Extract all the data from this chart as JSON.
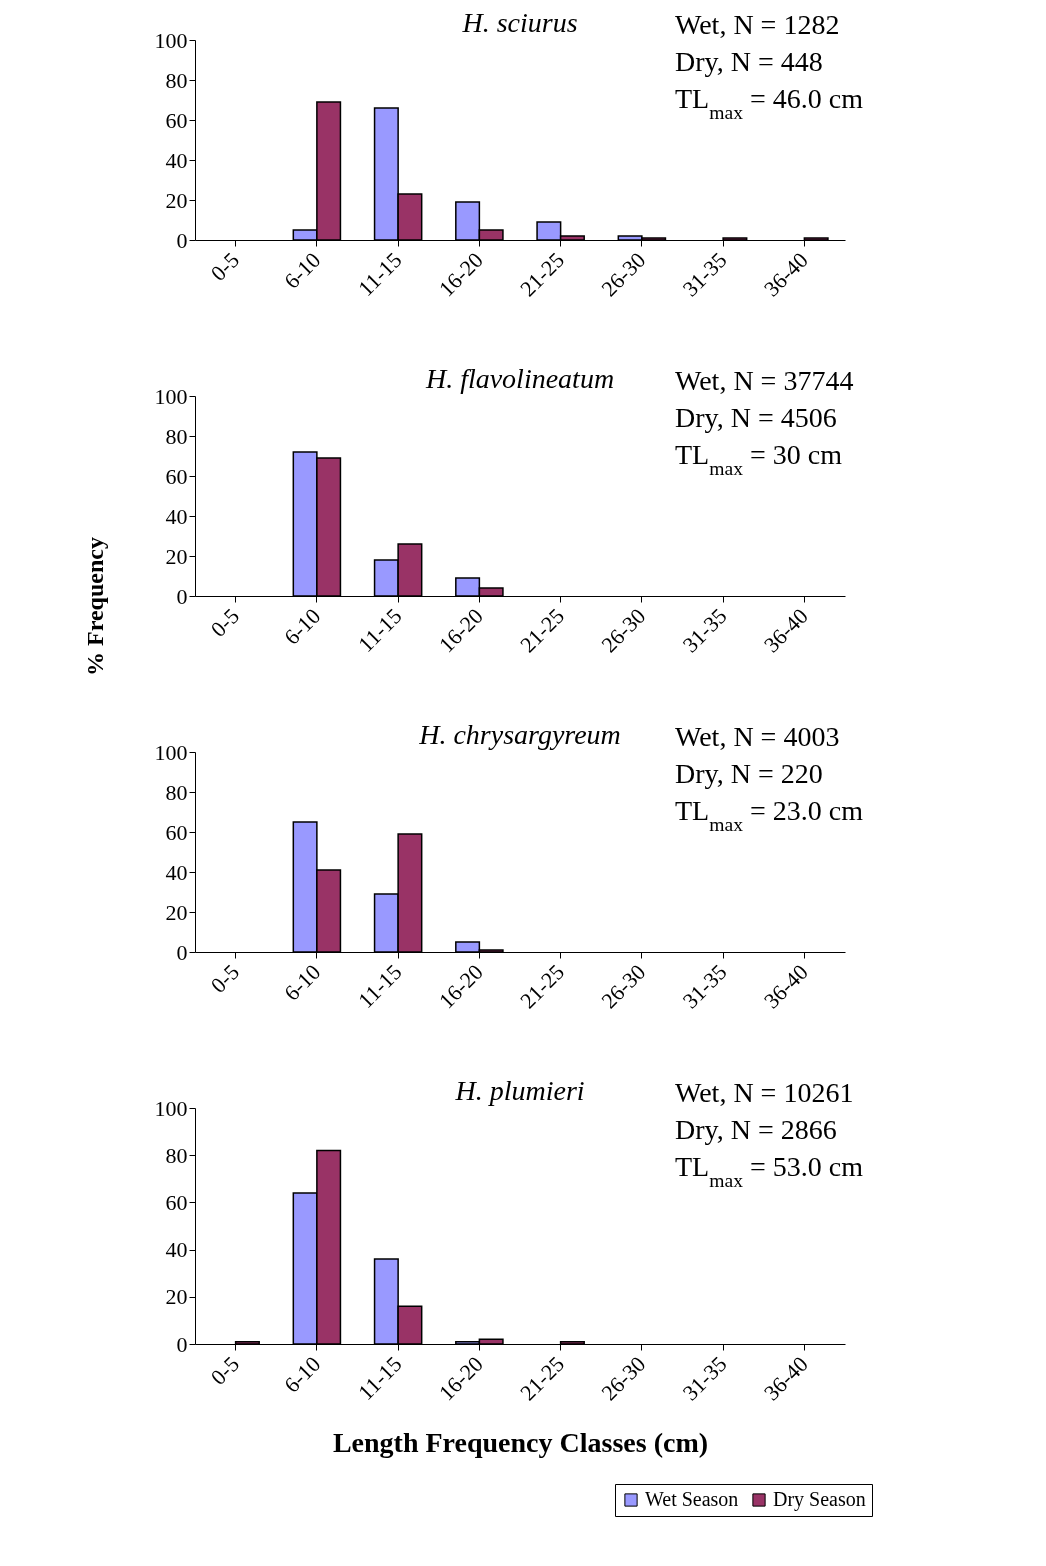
{
  "chart_data": [
    {
      "type": "bar",
      "title": "H. sciurus",
      "categories": [
        "0-5",
        "6-10",
        "11-15",
        "16-20",
        "21-25",
        "26-30",
        "31-35",
        "36-40"
      ],
      "ylim": [
        0,
        100
      ],
      "yticks": [
        0,
        20,
        40,
        60,
        80,
        100
      ],
      "annotations": [
        "Wet, N = 1282",
        "Dry, N = 448",
        "TL$_{max}$ = 46.0 cm"
      ],
      "series": [
        {
          "color": "#9999ff",
          "values": [
            null,
            5,
            66,
            19,
            9,
            2,
            null,
            null
          ]
        },
        {
          "color": "#993366",
          "values": [
            null,
            69,
            23,
            5,
            2,
            1,
            1,
            1
          ]
        }
      ]
    },
    {
      "type": "bar",
      "title": "H. flavolineatum",
      "ylabel": "% Frequency",
      "categories": [
        "0-5",
        "6-10",
        "11-15",
        "16-20",
        "21-25",
        "26-30",
        "31-35",
        "36-40"
      ],
      "ylim": [
        0,
        100
      ],
      "yticks": [
        0,
        20,
        40,
        60,
        80,
        100
      ],
      "annotations": [
        "Wet, N = 37744",
        "Dry, N = 4506",
        "TL$_{max}$ = 30 cm"
      ],
      "series": [
        {
          "color": "#9999ff",
          "values": [
            null,
            72,
            18,
            9,
            null,
            null,
            null,
            null
          ]
        },
        {
          "color": "#993366",
          "values": [
            null,
            69,
            26,
            4,
            null,
            null,
            null,
            null
          ]
        }
      ]
    },
    {
      "type": "bar",
      "title": "H. chrysargyreum",
      "categories": [
        "0-5",
        "6-10",
        "11-15",
        "16-20",
        "21-25",
        "26-30",
        "31-35",
        "36-40"
      ],
      "ylim": [
        0,
        100
      ],
      "yticks": [
        0,
        20,
        40,
        60,
        80,
        100
      ],
      "annotations": [
        "Wet, N = 4003",
        "Dry, N = 220",
        "TL$_{max}$ = 23.0 cm"
      ],
      "series": [
        {
          "color": "#9999ff",
          "values": [
            null,
            65,
            29,
            5,
            null,
            null,
            null,
            null
          ]
        },
        {
          "color": "#993366",
          "values": [
            null,
            41,
            59,
            1,
            null,
            null,
            null,
            null
          ]
        }
      ]
    },
    {
      "type": "bar",
      "title": "H. plumieri",
      "xlabel": "Length Frequency Classes (cm)",
      "categories": [
        "0-5",
        "6-10",
        "11-15",
        "16-20",
        "21-25",
        "26-30",
        "31-35",
        "36-40"
      ],
      "ylim": [
        0,
        100
      ],
      "yticks": [
        0,
        20,
        40,
        60,
        80,
        100
      ],
      "annotations": [
        "Wet, N = 10261",
        "Dry, N = 2866",
        "TL$_{max}$ = 53.0 cm"
      ],
      "legend": "bottom right",
      "series": [
        {
          "name": "Wet Season",
          "color": "#9999ff",
          "values": [
            null,
            64,
            36,
            1,
            null,
            null,
            null,
            null
          ]
        },
        {
          "name": "Dry Season",
          "color": "#993366",
          "values": [
            1,
            82,
            16,
            2,
            1,
            null,
            null,
            null
          ]
        }
      ]
    }
  ]
}
